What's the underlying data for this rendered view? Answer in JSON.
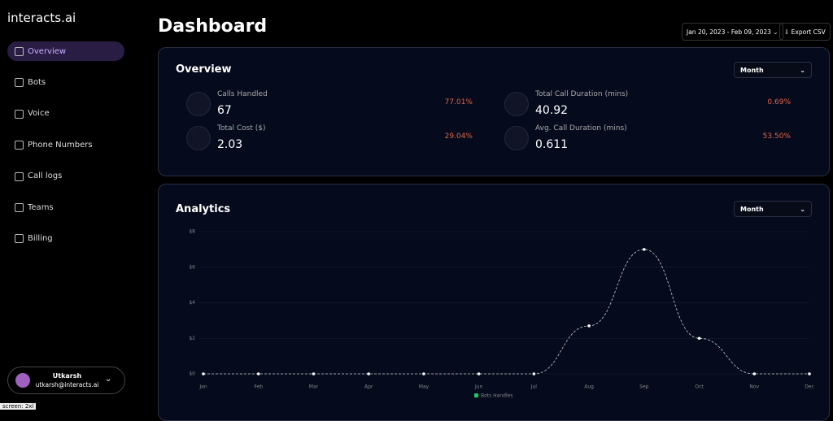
{
  "sidebar": {
    "logo": "interacts.ai",
    "nav": [
      "Overview",
      "Bots",
      "Voice",
      "Phone Numbers",
      "Call logs",
      "Teams",
      "Billing"
    ],
    "user": {
      "name": "Utkarsh",
      "email": "utkarsh@interacts.ai"
    },
    "screen_badge": "screen: 2xl"
  },
  "header": {
    "title": "Dashboard",
    "date_range": "Jan 20, 2023 - Feb 09, 2023",
    "export": "Export CSV"
  },
  "overview": {
    "title": "Overview",
    "period": "Month",
    "stats": [
      {
        "label": "Calls Handled",
        "value": "67",
        "change": "77.01%"
      },
      {
        "label": "Total Call Duration (mins)",
        "value": "40.92",
        "change": "0.69%"
      },
      {
        "label": "Total Cost ($)",
        "value": "2.03",
        "change": "29.04%"
      },
      {
        "label": "Avg. Call Duration (mins)",
        "value": "0.611",
        "change": "53.50%"
      }
    ]
  },
  "analytics": {
    "title": "Analytics",
    "period": "Month"
  },
  "chart_data": {
    "type": "line",
    "categories": [
      "Jan",
      "Feb",
      "Mar",
      "Apr",
      "May",
      "Jun",
      "Jul",
      "Aug",
      "Sep",
      "Oct",
      "Nov",
      "Dec"
    ],
    "series": [
      {
        "name": "Bots Handles",
        "color": "#22c55e",
        "values": [
          0,
          0,
          0,
          0,
          0,
          0,
          0,
          2.7,
          7,
          2,
          0,
          0
        ]
      }
    ],
    "ylim": [
      0,
      8
    ],
    "yticks": [
      {
        "value": 0,
        "label": "$0"
      },
      {
        "value": 2,
        "label": "$2"
      },
      {
        "value": 4,
        "label": "$4"
      },
      {
        "value": 6,
        "label": "$6"
      },
      {
        "value": 8,
        "label": "$8"
      }
    ],
    "grid": true
  }
}
